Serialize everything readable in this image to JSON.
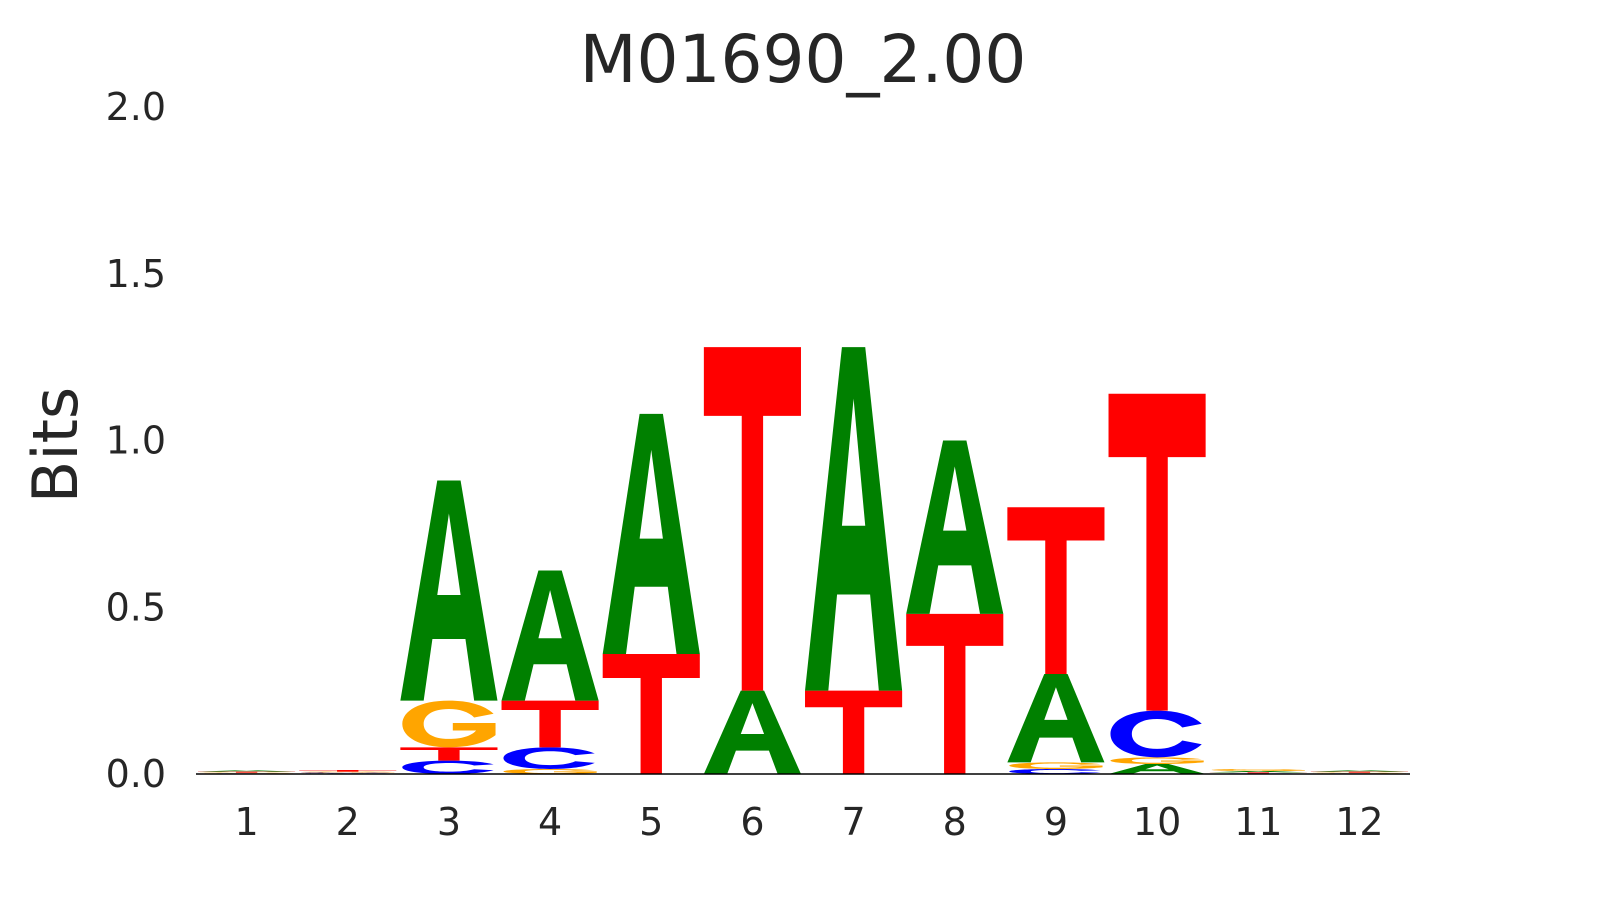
{
  "chart_data": {
    "type": "sequence-logo",
    "title": "M01690_2.00",
    "ylabel": "Bits",
    "xlabel": "",
    "ylim": [
      0,
      2.0
    ],
    "yticks": [
      "0.0",
      "0.5",
      "1.0",
      "1.5",
      "2.0"
    ],
    "ytick_values": [
      0.0,
      0.5,
      1.0,
      1.5,
      2.0
    ],
    "grid": false,
    "legend": "none",
    "colors": {
      "A": "#008000",
      "C": "#0000ff",
      "G": "#ffa500",
      "T": "#ff0000"
    },
    "positions": [
      {
        "label": "1",
        "stack": [
          {
            "base": "C",
            "bits": 0.002
          },
          {
            "base": "G",
            "bits": 0.002
          },
          {
            "base": "T",
            "bits": 0.003
          },
          {
            "base": "A",
            "bits": 0.004
          }
        ]
      },
      {
        "label": "2",
        "stack": [
          {
            "base": "A",
            "bits": 0.002
          },
          {
            "base": "C",
            "bits": 0.002
          },
          {
            "base": "G",
            "bits": 0.003
          },
          {
            "base": "T",
            "bits": 0.005
          }
        ]
      },
      {
        "label": "3",
        "stack": [
          {
            "base": "C",
            "bits": 0.04
          },
          {
            "base": "T",
            "bits": 0.04
          },
          {
            "base": "G",
            "bits": 0.14
          },
          {
            "base": "A",
            "bits": 0.66
          }
        ]
      },
      {
        "label": "4",
        "stack": [
          {
            "base": "G",
            "bits": 0.015
          },
          {
            "base": "C",
            "bits": 0.065
          },
          {
            "base": "T",
            "bits": 0.14
          },
          {
            "base": "A",
            "bits": 0.39
          }
        ]
      },
      {
        "label": "5",
        "stack": [
          {
            "base": "T",
            "bits": 0.36
          },
          {
            "base": "A",
            "bits": 0.72
          }
        ]
      },
      {
        "label": "6",
        "stack": [
          {
            "base": "A",
            "bits": 0.25
          },
          {
            "base": "T",
            "bits": 1.03
          }
        ]
      },
      {
        "label": "7",
        "stack": [
          {
            "base": "T",
            "bits": 0.25
          },
          {
            "base": "A",
            "bits": 1.03
          }
        ]
      },
      {
        "label": "8",
        "stack": [
          {
            "base": "T",
            "bits": 0.48
          },
          {
            "base": "A",
            "bits": 0.52
          }
        ]
      },
      {
        "label": "9",
        "stack": [
          {
            "base": "C",
            "bits": 0.015
          },
          {
            "base": "G",
            "bits": 0.02
          },
          {
            "base": "A",
            "bits": 0.265
          },
          {
            "base": "T",
            "bits": 0.5
          }
        ]
      },
      {
        "label": "10",
        "stack": [
          {
            "base": "A",
            "bits": 0.03
          },
          {
            "base": "G",
            "bits": 0.02
          },
          {
            "base": "C",
            "bits": 0.14
          },
          {
            "base": "T",
            "bits": 0.95
          }
        ]
      },
      {
        "label": "11",
        "stack": [
          {
            "base": "C",
            "bits": 0.002
          },
          {
            "base": "T",
            "bits": 0.003
          },
          {
            "base": "A",
            "bits": 0.004
          },
          {
            "base": "G",
            "bits": 0.006
          }
        ]
      },
      {
        "label": "12",
        "stack": [
          {
            "base": "C",
            "bits": 0.002
          },
          {
            "base": "G",
            "bits": 0.002
          },
          {
            "base": "T",
            "bits": 0.003
          },
          {
            "base": "A",
            "bits": 0.004
          }
        ]
      }
    ]
  }
}
